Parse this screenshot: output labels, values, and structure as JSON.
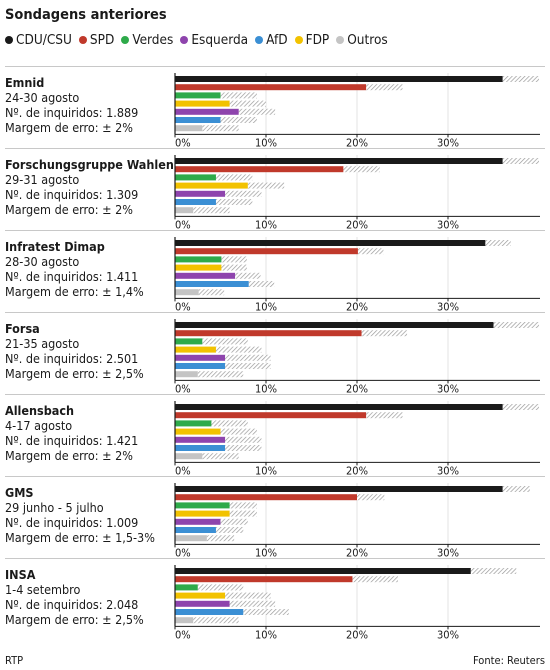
{
  "header": {
    "title": "Sondagens anteriores"
  },
  "legend": [
    {
      "label": "CDU/CSU",
      "color": "#1a1a1a"
    },
    {
      "label": "SPD",
      "color": "#c0392b"
    },
    {
      "label": "Verdes",
      "color": "#2eaa4a"
    },
    {
      "label": "Esquerda",
      "color": "#8e44ad"
    },
    {
      "label": "AfD",
      "color": "#3b8fd4"
    },
    {
      "label": "FDP",
      "color": "#f2c200"
    },
    {
      "label": "Outros",
      "color": "#c4c4c4"
    }
  ],
  "chart_data": [
    {
      "type": "bar",
      "orientation": "horizontal",
      "xlim": [
        0,
        40
      ],
      "ticks": [
        "0%",
        "10%",
        "20%",
        "30%"
      ],
      "categories": [
        "CDU/CSU",
        "SPD",
        "Verdes",
        "FDP",
        "Esquerda",
        "AfD",
        "Outros"
      ],
      "poll": "Emnid",
      "date": "24-30 agosto",
      "sample": "Nº. de inquiridos: 1.889",
      "margin": "Margem de erro: ± 2%",
      "values": [
        38,
        23,
        7,
        8,
        9,
        7,
        5
      ],
      "error": [
        2,
        2,
        2,
        2,
        2,
        2,
        2
      ]
    },
    {
      "type": "bar",
      "orientation": "horizontal",
      "xlim": [
        0,
        40
      ],
      "ticks": [
        "0%",
        "10%",
        "20%",
        "30%"
      ],
      "categories": [
        "CDU/CSU",
        "SPD",
        "Verdes",
        "FDP",
        "Esquerda",
        "AfD",
        "Outros"
      ],
      "poll": "Forschungsgruppe Wahlen",
      "date": "29-31 agosto",
      "sample": "Nº. de inquiridos: 1.309",
      "margin": "Margem de erro: ± 2%",
      "values": [
        38,
        20.5,
        6.5,
        10,
        7.5,
        6.5,
        4
      ],
      "error": [
        2,
        2,
        2,
        2,
        2,
        2,
        2
      ]
    },
    {
      "type": "bar",
      "orientation": "horizontal",
      "xlim": [
        0,
        40
      ],
      "ticks": [
        "0%",
        "10%",
        "20%",
        "30%"
      ],
      "categories": [
        "CDU/CSU",
        "SPD",
        "Verdes",
        "FDP",
        "Esquerda",
        "AfD",
        "Outros"
      ],
      "poll": "Infratest Dimap",
      "date": "28-30 agosto",
      "sample": "Nº. de inquiridos: 1.411",
      "margin": "Margem de erro: ± 1,4%",
      "values": [
        35.5,
        21.5,
        6.5,
        6.5,
        8,
        9.5,
        4
      ],
      "error": [
        1.4,
        1.4,
        1.4,
        1.4,
        1.4,
        1.4,
        1.4
      ]
    },
    {
      "type": "bar",
      "orientation": "horizontal",
      "xlim": [
        0,
        40
      ],
      "ticks": [
        "0%",
        "10%",
        "20%",
        "30%"
      ],
      "categories": [
        "CDU/CSU",
        "SPD",
        "Verdes",
        "FDP",
        "Esquerda",
        "AfD",
        "Outros"
      ],
      "poll": "Forsa",
      "date": "21-35 agosto",
      "sample": "Nº. de inquiridos: 2.501",
      "margin": "Margem de erro: ± 2,5%",
      "values": [
        37.5,
        23,
        5.5,
        7,
        8,
        8,
        5
      ],
      "error": [
        2.5,
        2.5,
        2.5,
        2.5,
        2.5,
        2.5,
        2.5
      ]
    },
    {
      "type": "bar",
      "orientation": "horizontal",
      "xlim": [
        0,
        40
      ],
      "ticks": [
        "0%",
        "10%",
        "20%",
        "30%"
      ],
      "categories": [
        "CDU/CSU",
        "SPD",
        "Verdes",
        "FDP",
        "Esquerda",
        "AfD",
        "Outros"
      ],
      "poll": "Allensbach",
      "date": "4-17 agosto",
      "sample": "Nº. de inquiridos: 1.421",
      "margin": "Margem de erro: ± 2%",
      "values": [
        38,
        23,
        6,
        7,
        7.5,
        7.5,
        5
      ],
      "error": [
        2,
        2,
        2,
        2,
        2,
        2,
        2
      ]
    },
    {
      "type": "bar",
      "orientation": "horizontal",
      "xlim": [
        0,
        40
      ],
      "ticks": [
        "0%",
        "10%",
        "20%",
        "30%"
      ],
      "categories": [
        "CDU/CSU",
        "SPD",
        "Verdes",
        "FDP",
        "Esquerda",
        "AfD",
        "Outros"
      ],
      "poll": "GMS",
      "date": "29 junho - 5 julho",
      "sample": "Nº. de inquiridos: 1.009",
      "margin": "Margem de erro: ± 1,5-3%",
      "values": [
        37.5,
        21.5,
        7.5,
        7.5,
        6.5,
        6,
        5
      ],
      "error": [
        1.5,
        1.5,
        1.5,
        1.5,
        1.5,
        1.5,
        1.5
      ]
    },
    {
      "type": "bar",
      "orientation": "horizontal",
      "xlim": [
        0,
        40
      ],
      "ticks": [
        "0%",
        "10%",
        "20%",
        "30%"
      ],
      "categories": [
        "CDU/CSU",
        "SPD",
        "Verdes",
        "FDP",
        "Esquerda",
        "AfD",
        "Outros"
      ],
      "poll": "INSA",
      "date": "1-4 setembro",
      "sample": "Nº. de inquiridos: 2.048",
      "margin": "Margem de erro: ± 2,5%",
      "values": [
        35,
        22,
        5,
        8,
        8.5,
        10,
        4.5
      ],
      "error": [
        2.5,
        2.5,
        2.5,
        2.5,
        2.5,
        2.5,
        2.5
      ]
    }
  ],
  "footer": {
    "credit": "RTP",
    "source": "Fonte: Reuters"
  }
}
